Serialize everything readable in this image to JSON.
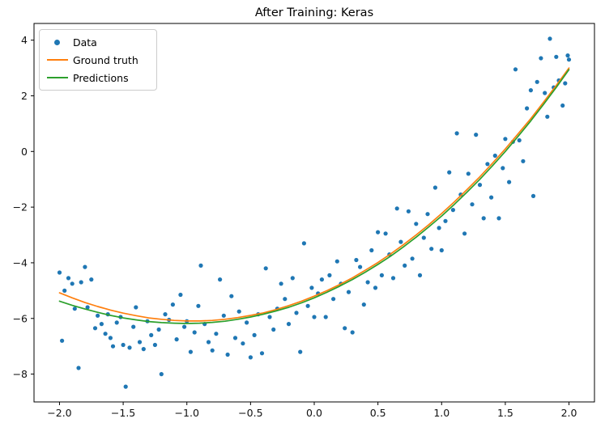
{
  "chart_data": {
    "type": "scatter",
    "title": "After Training: Keras",
    "xlabel": "",
    "ylabel": "",
    "xlim": [
      -2.2,
      2.2
    ],
    "ylim": [
      -9.0,
      4.6
    ],
    "xticks": [
      -2.0,
      -1.5,
      -1.0,
      -0.5,
      0.0,
      0.5,
      1.0,
      1.5,
      2.0
    ],
    "yticks": [
      -8,
      -6,
      -4,
      -2,
      0,
      2,
      4
    ],
    "grid": false,
    "legend": {
      "position": "upper-left",
      "entries": [
        {
          "label": "Data",
          "type": "marker",
          "color": "#1f77b4"
        },
        {
          "label": "Ground truth",
          "type": "line",
          "color": "#ff7f0e"
        },
        {
          "label": "Predictions",
          "type": "line",
          "color": "#2ca02c"
        }
      ]
    },
    "series": [
      {
        "name": "Data",
        "kind": "scatter",
        "color": "#1f77b4",
        "points": [
          [
            -2.0,
            -4.35
          ],
          [
            -1.98,
            -6.8
          ],
          [
            -1.96,
            -5.0
          ],
          [
            -1.93,
            -4.55
          ],
          [
            -1.9,
            -4.75
          ],
          [
            -1.88,
            -5.65
          ],
          [
            -1.85,
            -7.78
          ],
          [
            -1.83,
            -4.7
          ],
          [
            -1.8,
            -4.15
          ],
          [
            -1.78,
            -5.6
          ],
          [
            -1.75,
            -4.6
          ],
          [
            -1.72,
            -6.35
          ],
          [
            -1.7,
            -5.9
          ],
          [
            -1.67,
            -6.2
          ],
          [
            -1.64,
            -6.55
          ],
          [
            -1.62,
            -5.85
          ],
          [
            -1.6,
            -6.7
          ],
          [
            -1.58,
            -7.0
          ],
          [
            -1.55,
            -6.15
          ],
          [
            -1.52,
            -5.95
          ],
          [
            -1.5,
            -6.95
          ],
          [
            -1.48,
            -8.45
          ],
          [
            -1.45,
            -7.05
          ],
          [
            -1.42,
            -6.3
          ],
          [
            -1.4,
            -5.6
          ],
          [
            -1.37,
            -6.85
          ],
          [
            -1.34,
            -7.1
          ],
          [
            -1.31,
            -6.1
          ],
          [
            -1.28,
            -6.6
          ],
          [
            -1.25,
            -6.95
          ],
          [
            -1.22,
            -6.4
          ],
          [
            -1.2,
            -8.0
          ],
          [
            -1.17,
            -5.85
          ],
          [
            -1.14,
            -6.05
          ],
          [
            -1.11,
            -5.5
          ],
          [
            -1.08,
            -6.75
          ],
          [
            -1.05,
            -5.15
          ],
          [
            -1.02,
            -6.3
          ],
          [
            -1.0,
            -6.1
          ],
          [
            -0.97,
            -7.2
          ],
          [
            -0.94,
            -6.5
          ],
          [
            -0.91,
            -5.55
          ],
          [
            -0.89,
            -4.1
          ],
          [
            -0.86,
            -6.2
          ],
          [
            -0.83,
            -6.85
          ],
          [
            -0.8,
            -7.15
          ],
          [
            -0.77,
            -6.55
          ],
          [
            -0.74,
            -4.6
          ],
          [
            -0.71,
            -5.9
          ],
          [
            -0.68,
            -7.3
          ],
          [
            -0.65,
            -5.2
          ],
          [
            -0.62,
            -6.7
          ],
          [
            -0.59,
            -5.75
          ],
          [
            -0.56,
            -6.9
          ],
          [
            -0.53,
            -6.15
          ],
          [
            -0.5,
            -7.4
          ],
          [
            -0.47,
            -6.6
          ],
          [
            -0.44,
            -5.85
          ],
          [
            -0.41,
            -7.25
          ],
          [
            -0.38,
            -4.2
          ],
          [
            -0.35,
            -5.95
          ],
          [
            -0.32,
            -6.4
          ],
          [
            -0.29,
            -5.65
          ],
          [
            -0.26,
            -4.75
          ],
          [
            -0.23,
            -5.3
          ],
          [
            -0.2,
            -6.2
          ],
          [
            -0.17,
            -4.55
          ],
          [
            -0.14,
            -5.8
          ],
          [
            -0.11,
            -7.2
          ],
          [
            -0.08,
            -3.3
          ],
          [
            -0.05,
            -5.55
          ],
          [
            -0.02,
            -4.9
          ],
          [
            0.0,
            -5.95
          ],
          [
            0.03,
            -5.1
          ],
          [
            0.06,
            -4.6
          ],
          [
            0.09,
            -5.95
          ],
          [
            0.12,
            -4.45
          ],
          [
            0.15,
            -5.3
          ],
          [
            0.18,
            -3.95
          ],
          [
            0.21,
            -4.75
          ],
          [
            0.24,
            -6.35
          ],
          [
            0.27,
            -5.05
          ],
          [
            0.3,
            -6.5
          ],
          [
            0.33,
            -3.9
          ],
          [
            0.36,
            -4.15
          ],
          [
            0.39,
            -5.5
          ],
          [
            0.42,
            -4.7
          ],
          [
            0.45,
            -3.55
          ],
          [
            0.48,
            -4.9
          ],
          [
            0.5,
            -2.9
          ],
          [
            0.53,
            -4.45
          ],
          [
            0.56,
            -2.95
          ],
          [
            0.59,
            -3.7
          ],
          [
            0.62,
            -4.55
          ],
          [
            0.65,
            -2.05
          ],
          [
            0.68,
            -3.25
          ],
          [
            0.71,
            -4.1
          ],
          [
            0.74,
            -2.15
          ],
          [
            0.77,
            -3.85
          ],
          [
            0.8,
            -2.6
          ],
          [
            0.83,
            -4.45
          ],
          [
            0.86,
            -3.1
          ],
          [
            0.89,
            -2.25
          ],
          [
            0.92,
            -3.5
          ],
          [
            0.95,
            -1.3
          ],
          [
            0.98,
            -2.75
          ],
          [
            1.0,
            -3.55
          ],
          [
            1.03,
            -2.5
          ],
          [
            1.06,
            -0.75
          ],
          [
            1.09,
            -2.1
          ],
          [
            1.12,
            0.65
          ],
          [
            1.15,
            -1.55
          ],
          [
            1.18,
            -2.95
          ],
          [
            1.21,
            -0.8
          ],
          [
            1.24,
            -1.9
          ],
          [
            1.27,
            0.6
          ],
          [
            1.3,
            -1.2
          ],
          [
            1.33,
            -2.4
          ],
          [
            1.36,
            -0.45
          ],
          [
            1.39,
            -1.65
          ],
          [
            1.42,
            -0.15
          ],
          [
            1.45,
            -2.4
          ],
          [
            1.48,
            -0.6
          ],
          [
            1.5,
            0.45
          ],
          [
            1.53,
            -1.1
          ],
          [
            1.56,
            0.35
          ],
          [
            1.58,
            2.95
          ],
          [
            1.61,
            0.4
          ],
          [
            1.64,
            -0.35
          ],
          [
            1.67,
            1.55
          ],
          [
            1.7,
            2.2
          ],
          [
            1.72,
            -1.6
          ],
          [
            1.75,
            2.5
          ],
          [
            1.78,
            3.35
          ],
          [
            1.81,
            2.1
          ],
          [
            1.83,
            1.25
          ],
          [
            1.85,
            4.05
          ],
          [
            1.88,
            2.3
          ],
          [
            1.9,
            3.4
          ],
          [
            1.92,
            2.55
          ],
          [
            1.95,
            1.65
          ],
          [
            1.97,
            2.45
          ],
          [
            1.99,
            3.45
          ],
          [
            2.0,
            3.3
          ]
        ]
      },
      {
        "name": "Ground truth",
        "kind": "line",
        "color": "#ff7f0e",
        "x": [
          -2.0,
          -1.9,
          -1.8,
          -1.7,
          -1.6,
          -1.5,
          -1.4,
          -1.3,
          -1.2,
          -1.1,
          -1.0,
          -0.9,
          -0.8,
          -0.7,
          -0.6,
          -0.5,
          -0.4,
          -0.3,
          -0.2,
          -0.1,
          0.0,
          0.1,
          0.2,
          0.3,
          0.4,
          0.5,
          0.6,
          0.7,
          0.8,
          0.9,
          1.0,
          1.1,
          1.2,
          1.3,
          1.4,
          1.5,
          1.6,
          1.7,
          1.8,
          1.9,
          2.0
        ],
        "y": [
          -5.08,
          -5.26,
          -5.43,
          -5.57,
          -5.7,
          -5.81,
          -5.9,
          -5.98,
          -6.03,
          -6.07,
          -6.09,
          -6.09,
          -6.07,
          -6.03,
          -5.97,
          -5.89,
          -5.8,
          -5.68,
          -5.54,
          -5.38,
          -5.2,
          -5.0,
          -4.78,
          -4.54,
          -4.27,
          -3.99,
          -3.68,
          -3.35,
          -3.0,
          -2.63,
          -2.23,
          -1.81,
          -1.37,
          -0.91,
          -0.42,
          0.09,
          0.63,
          1.18,
          1.77,
          2.37,
          3.0
        ]
      },
      {
        "name": "Predictions",
        "kind": "line",
        "color": "#2ca02c",
        "x": [
          -2.0,
          -1.9,
          -1.8,
          -1.7,
          -1.6,
          -1.5,
          -1.4,
          -1.3,
          -1.2,
          -1.1,
          -1.0,
          -0.9,
          -0.8,
          -0.7,
          -0.6,
          -0.5,
          -0.4,
          -0.3,
          -0.2,
          -0.1,
          0.0,
          0.1,
          0.2,
          0.3,
          0.4,
          0.5,
          0.6,
          0.7,
          0.8,
          0.9,
          1.0,
          1.1,
          1.2,
          1.3,
          1.4,
          1.5,
          1.6,
          1.7,
          1.8,
          1.9,
          2.0
        ],
        "y": [
          -5.38,
          -5.53,
          -5.66,
          -5.78,
          -5.89,
          -5.98,
          -6.05,
          -6.11,
          -6.15,
          -6.17,
          -6.18,
          -6.17,
          -6.14,
          -6.1,
          -6.03,
          -5.95,
          -5.85,
          -5.73,
          -5.6,
          -5.44,
          -5.26,
          -5.06,
          -4.84,
          -4.6,
          -4.34,
          -4.06,
          -3.76,
          -3.43,
          -3.08,
          -2.71,
          -2.32,
          -1.9,
          -1.46,
          -1.0,
          -0.51,
          0.0,
          0.54,
          1.1,
          1.69,
          2.3,
          2.94
        ]
      }
    ]
  }
}
